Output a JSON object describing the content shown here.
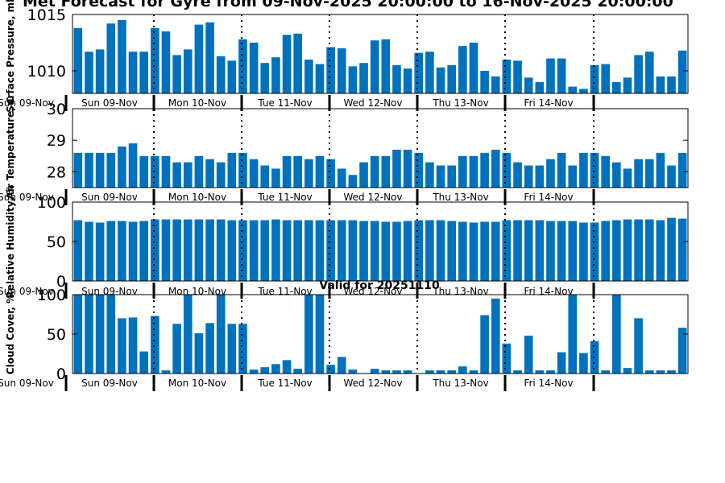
{
  "title": "Met Forecast for Gyre from 09-Nov-2025 20:00:00 to 16-Nov-2025 20:00:00",
  "valid_label": "Valid for 20251110",
  "colors": {
    "bar": "#0072BD",
    "axis": "#000000",
    "divider": "#000000"
  },
  "chart_data": [
    {
      "name": "surface-pressure",
      "type": "bar",
      "ylabel": "Surface Pressure, mb",
      "ylim": [
        1008,
        1015
      ],
      "yticks": [
        1010,
        1015
      ],
      "values": [
        1013.8,
        1011.7,
        1011.9,
        1014.2,
        1014.5,
        1011.7,
        1011.7,
        1013.8,
        1013.5,
        1011.4,
        1011.9,
        1014.1,
        1014.3,
        1011.3,
        1010.9,
        1012.8,
        1012.5,
        1010.7,
        1011.2,
        1013.2,
        1013.3,
        1011.0,
        1010.6,
        1012.1,
        1012.0,
        1010.4,
        1010.7,
        1012.7,
        1012.8,
        1010.5,
        1010.2,
        1011.6,
        1011.7,
        1010.3,
        1010.5,
        1012.2,
        1012.5,
        1010.0,
        1009.5,
        1011.0,
        1010.9,
        1009.4,
        1009.0,
        1011.1,
        1011.1,
        1008.6,
        1008.4,
        1010.5,
        1010.6,
        1009.0,
        1009.4,
        1011.4,
        1011.7,
        1009.5,
        1009.5,
        1011.8
      ]
    },
    {
      "name": "air-temperature",
      "type": "bar",
      "ylabel": "Air Temperature, C",
      "ylim": [
        27.5,
        30
      ],
      "yticks": [
        28,
        29,
        30
      ],
      "values": [
        28.6,
        28.6,
        28.6,
        28.6,
        28.8,
        28.9,
        28.5,
        28.5,
        28.5,
        28.3,
        28.3,
        28.5,
        28.4,
        28.3,
        28.6,
        28.6,
        28.4,
        28.2,
        28.1,
        28.5,
        28.5,
        28.4,
        28.5,
        28.4,
        28.1,
        27.9,
        28.3,
        28.5,
        28.5,
        28.7,
        28.7,
        28.6,
        28.3,
        28.2,
        28.2,
        28.5,
        28.5,
        28.6,
        28.7,
        28.6,
        28.3,
        28.2,
        28.2,
        28.4,
        28.6,
        28.2,
        28.6,
        28.6,
        28.5,
        28.3,
        28.1,
        28.4,
        28.4,
        28.6,
        28.2,
        28.6
      ]
    },
    {
      "name": "relative-humidity",
      "type": "bar",
      "ylabel": "Relative Humidity, %",
      "ylim": [
        0,
        100
      ],
      "yticks": [
        0,
        50,
        100
      ],
      "values": [
        77,
        75,
        74,
        76,
        76,
        75,
        76,
        78,
        78,
        78,
        78,
        78,
        78,
        78,
        77,
        77,
        77,
        77,
        78,
        77,
        77,
        77,
        77,
        77,
        77,
        77,
        76,
        76,
        75,
        75,
        76,
        77,
        77,
        77,
        76,
        75,
        74,
        75,
        75,
        77,
        77,
        77,
        77,
        76,
        76,
        76,
        74,
        74,
        76,
        77,
        78,
        78,
        78,
        77,
        80,
        79
      ]
    },
    {
      "name": "cloud-cover",
      "type": "bar",
      "ylabel": "Cloud Cover, %",
      "ylim": [
        0,
        100
      ],
      "yticks": [
        0,
        50,
        100
      ],
      "values": [
        100,
        100,
        100,
        100,
        70,
        71,
        28,
        73,
        4,
        63,
        100,
        51,
        64,
        100,
        63,
        63,
        5,
        8,
        12,
        17,
        6,
        100,
        100,
        11,
        21,
        5,
        0,
        6,
        4,
        4,
        4,
        0,
        4,
        4,
        4,
        9,
        4,
        74,
        95,
        38,
        4,
        48,
        4,
        4,
        27,
        100,
        26,
        41,
        4,
        100,
        7,
        70,
        4,
        4,
        4,
        58
      ]
    }
  ],
  "day_labels": [
    "Sun 09-Nov",
    "Mon 10-Nov",
    "Tue 11-Nov",
    "Wed 12-Nov",
    "Thu 13-Nov",
    "Fri 14-Nov"
  ],
  "edge_label": "Sun 09-Nov"
}
